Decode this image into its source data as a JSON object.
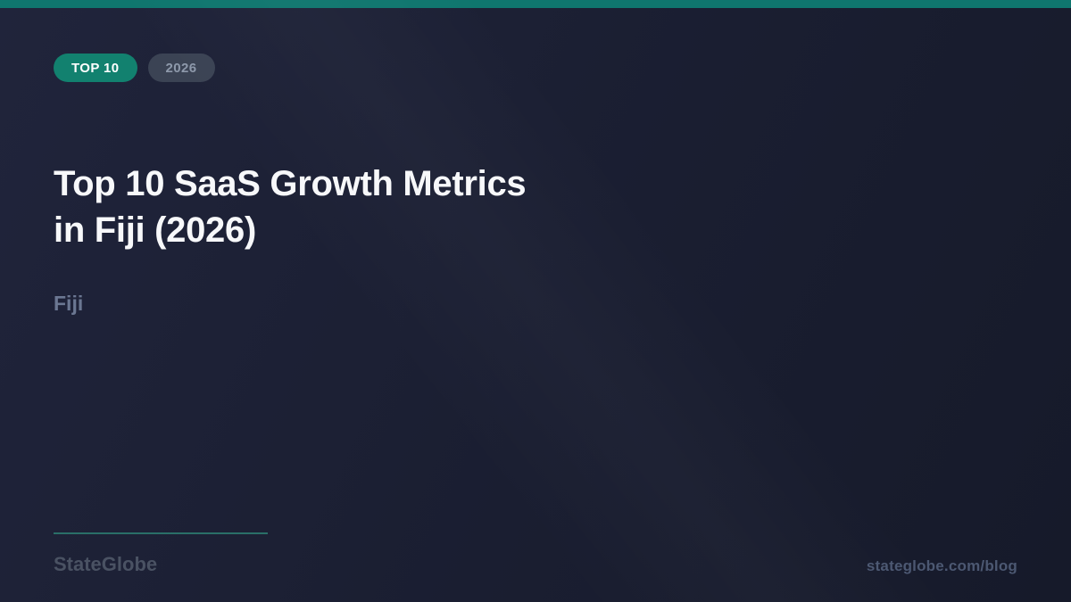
{
  "colors": {
    "accent_teal": "#0f766e",
    "badge_teal_bg": "#12816f",
    "badge_teal_text": "#ffffff",
    "badge_gray_bg": "#3b4354",
    "badge_gray_text": "#8e99ab",
    "bg_light": "#20243b",
    "bg_mid": "#1a1e31",
    "bg_dark": "#161a2a",
    "title_color": "#f7f8fa",
    "subtitle_color": "#6b7792",
    "divider_color": "#2a6f68",
    "brand_color": "#4a5263",
    "url_color": "#4c5872"
  },
  "badges": [
    {
      "label": "TOP 10"
    },
    {
      "label": "2026"
    }
  ],
  "title": {
    "full": "Top 10 SaaS Growth Metrics in Fiji (2026)",
    "line1": "Top 10 SaaS Growth Metrics",
    "line2": "in Fiji (2026)"
  },
  "subtitle": "Fiji",
  "footer": {
    "brand": "StateGlobe",
    "url": "stateglobe.com/blog"
  }
}
